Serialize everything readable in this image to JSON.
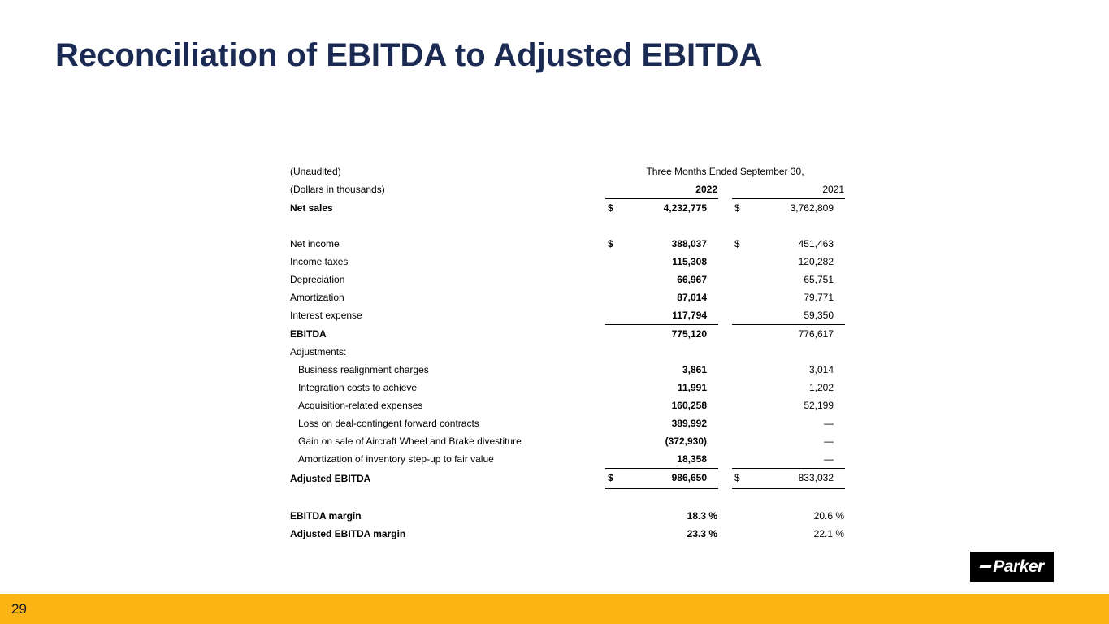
{
  "slide": {
    "title": "Reconciliation of EBITDA to Adjusted EBITDA",
    "page_number": "29",
    "logo_text": "Parker",
    "accent_color": "#fcb515",
    "title_color": "#1a2a52"
  },
  "table": {
    "unaudited_label": "(Unaudited)",
    "dollars_label": "(Dollars in thousands)",
    "period_header": "Three Months Ended September 30,",
    "year_col_1": "2022",
    "year_col_2": "2021",
    "rows": [
      {
        "label": "Net sales",
        "bold": true,
        "d22": "$",
        "v22": "4,232,775",
        "d21": "$",
        "v21": "3,762,809"
      },
      {
        "spacer": true
      },
      {
        "label": "Net income",
        "d22": "$",
        "v22": "388,037",
        "d21": "$",
        "v21": "451,463"
      },
      {
        "label": "Income taxes",
        "v22": "115,308",
        "v21": "120,282"
      },
      {
        "label": "Depreciation",
        "v22": "66,967",
        "v21": "65,751"
      },
      {
        "label": "Amortization",
        "v22": "87,014",
        "v21": "79,771"
      },
      {
        "label": "Interest expense",
        "v22": "117,794",
        "v21": "59,350",
        "border": "single"
      },
      {
        "label": "EBITDA",
        "bold": true,
        "v22": "775,120",
        "v21": "776,617"
      },
      {
        "label": "Adjustments:"
      },
      {
        "label": "Business realignment charges",
        "indent": true,
        "v22": "3,861",
        "v21": "3,014"
      },
      {
        "label": "Integration costs to achieve",
        "indent": true,
        "v22": "11,991",
        "v21": "1,202"
      },
      {
        "label": "Acquisition-related expenses",
        "indent": true,
        "v22": "160,258",
        "v21": "52,199"
      },
      {
        "label": "Loss on deal-contingent forward contracts",
        "indent": true,
        "v22": "389,992",
        "v21": "—"
      },
      {
        "label": "Gain on sale of Aircraft Wheel and Brake divestiture",
        "indent": true,
        "v22": "(372,930)",
        "v21": "—"
      },
      {
        "label": "Amortization of inventory step-up to fair value",
        "indent": true,
        "v22": "18,358",
        "v21": "—",
        "border": "single"
      },
      {
        "label": "Adjusted EBITDA",
        "bold": true,
        "d22": "$",
        "v22": "986,650",
        "d21": "$",
        "v21": "833,032",
        "border": "double"
      },
      {
        "spacer": true
      },
      {
        "label": "EBITDA margin",
        "bold": true,
        "v22": "18.3 %",
        "v21": "20.6 %",
        "pct": true
      },
      {
        "label": "Adjusted EBITDA margin",
        "bold": true,
        "v22": "23.3 %",
        "v21": "22.1 %",
        "pct": true
      }
    ]
  }
}
